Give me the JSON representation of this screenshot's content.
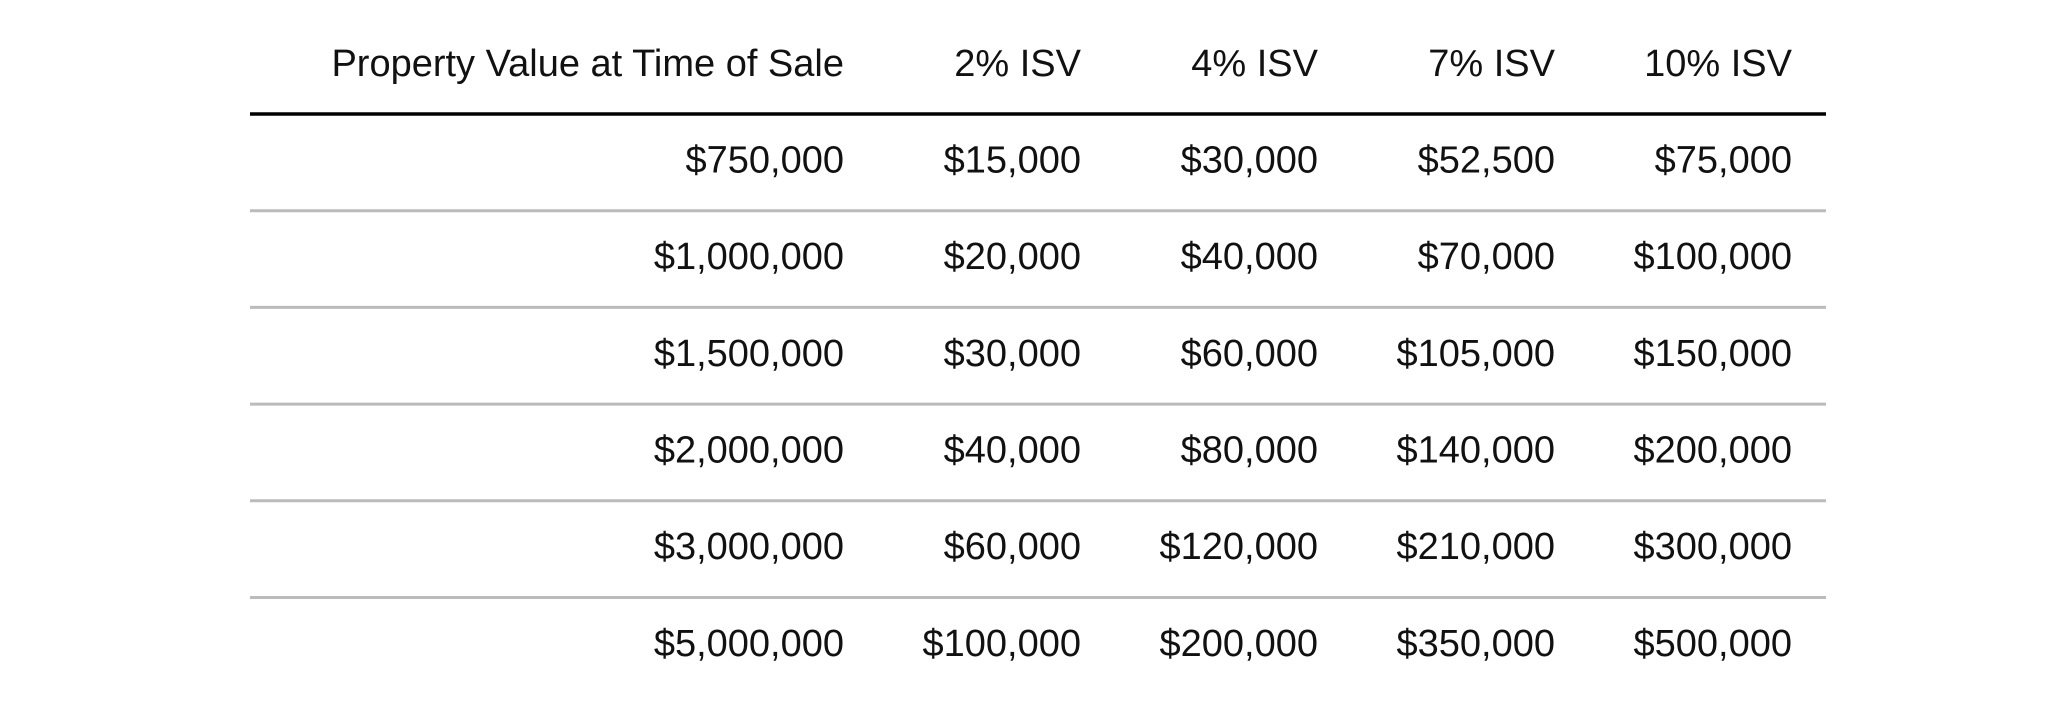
{
  "table": {
    "header": [
      "Property Value at Time of Sale",
      "2% ISV",
      "4% ISV",
      "7% ISV",
      "10% ISV"
    ],
    "rows": [
      [
        "$750,000",
        "$15,000",
        "$30,000",
        "$52,500",
        "$75,000"
      ],
      [
        "$1,000,000",
        "$20,000",
        "$40,000",
        "$70,000",
        "$100,000"
      ],
      [
        "$1,500,000",
        "$30,000",
        "$60,000",
        "$105,000",
        "$150,000"
      ],
      [
        "$2,000,000",
        "$40,000",
        "$80,000",
        "$140,000",
        "$200,000"
      ],
      [
        "$3,000,000",
        "$60,000",
        "$120,000",
        "$210,000",
        "$300,000"
      ],
      [
        "$5,000,000",
        "$100,000",
        "$200,000",
        "$350,000",
        "$500,000"
      ]
    ]
  }
}
